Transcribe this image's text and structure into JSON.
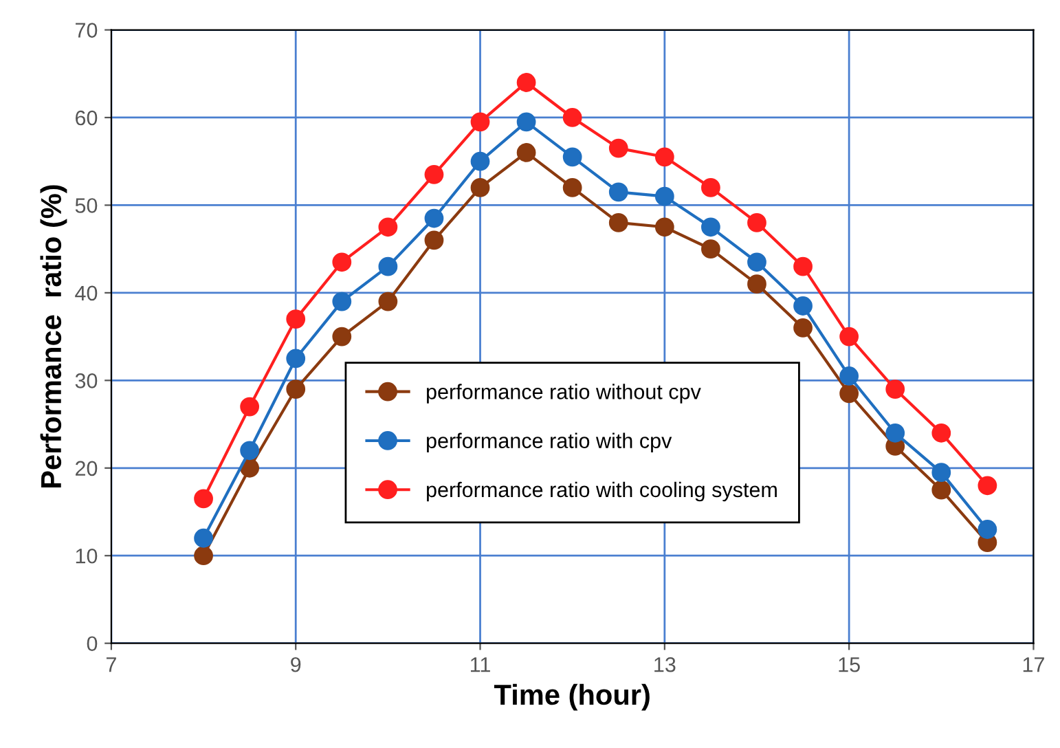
{
  "chart_data": {
    "type": "line",
    "xlabel": "Time (hour)",
    "ylabel": "Performance  ratio (%)",
    "x": [
      8,
      8.5,
      9,
      9.5,
      10,
      10.5,
      11,
      11.5,
      12,
      12.5,
      13,
      13.5,
      14,
      14.5,
      15,
      15.5,
      16,
      16.5
    ],
    "series": [
      {
        "name": "performance ratio without cpv",
        "color": "#8b3a0f",
        "values": [
          10,
          20,
          29,
          35,
          39,
          46,
          52,
          56,
          52,
          48,
          47.5,
          45,
          41,
          36,
          28.5,
          22.5,
          17.5,
          11.5
        ]
      },
      {
        "name": "performance ratio with cpv",
        "color": "#1f6fc0",
        "values": [
          12,
          22,
          32.5,
          39,
          43,
          48.5,
          55,
          59.5,
          55.5,
          51.5,
          51,
          47.5,
          43.5,
          38.5,
          30.5,
          24,
          19.5,
          13
        ]
      },
      {
        "name": "performance ratio with cooling system",
        "color": "#ff1f1f",
        "values": [
          16.5,
          27,
          37,
          43.5,
          47.5,
          53.5,
          59.5,
          64,
          60,
          56.5,
          55.5,
          52,
          48,
          43,
          35,
          29,
          24,
          18
        ]
      }
    ],
    "xlim": [
      7,
      17
    ],
    "xticks": [
      7,
      9,
      11,
      13,
      15,
      17
    ],
    "ylim": [
      0,
      70
    ],
    "yticks": [
      0,
      10,
      20,
      30,
      40,
      50,
      60,
      70
    ],
    "grid": true,
    "legend": "bottom",
    "marker": "circle",
    "line_style": "solid"
  }
}
